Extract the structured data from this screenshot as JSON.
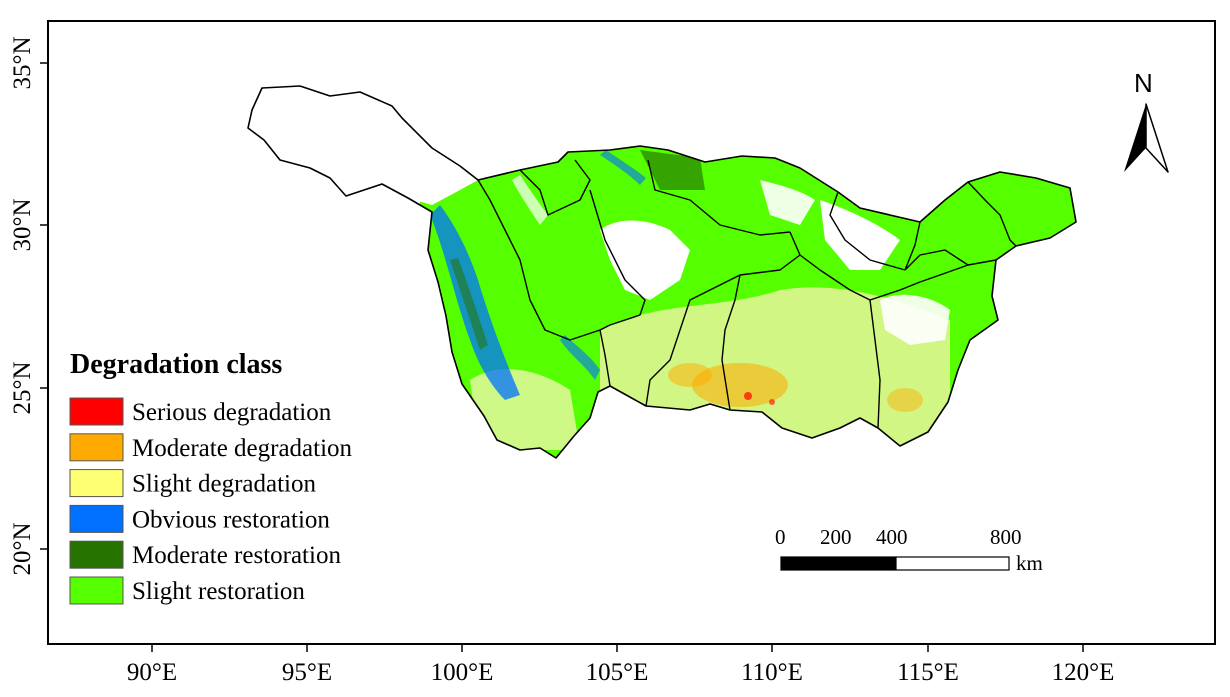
{
  "legend": {
    "title": "Degradation class",
    "items": [
      {
        "label": "Serious degradation",
        "color": "#ff0000"
      },
      {
        "label": "Moderate degradation",
        "color": "#ffaa00"
      },
      {
        "label": "Slight degradation",
        "color": "#ffff73"
      },
      {
        "label": "Obvious restoration",
        "color": "#0070ff"
      },
      {
        "label": "Moderate restoration",
        "color": "#267300"
      },
      {
        "label": "Slight restoration",
        "color": "#55ff00"
      }
    ]
  },
  "axes": {
    "x_ticks": [
      "90°E",
      "95°E",
      "100°E",
      "105°E",
      "110°E",
      "115°E",
      "120°E"
    ],
    "y_ticks": [
      "35°N",
      "30°N",
      "25°N",
      "20°N"
    ]
  },
  "scale_bar": {
    "labels": [
      "0",
      "200",
      "400",
      "800"
    ],
    "unit": "km"
  },
  "north_arrow": {
    "label": "N"
  },
  "colors": {
    "boundary": "#000000",
    "frame": "#000000",
    "background": "#ffffff"
  }
}
